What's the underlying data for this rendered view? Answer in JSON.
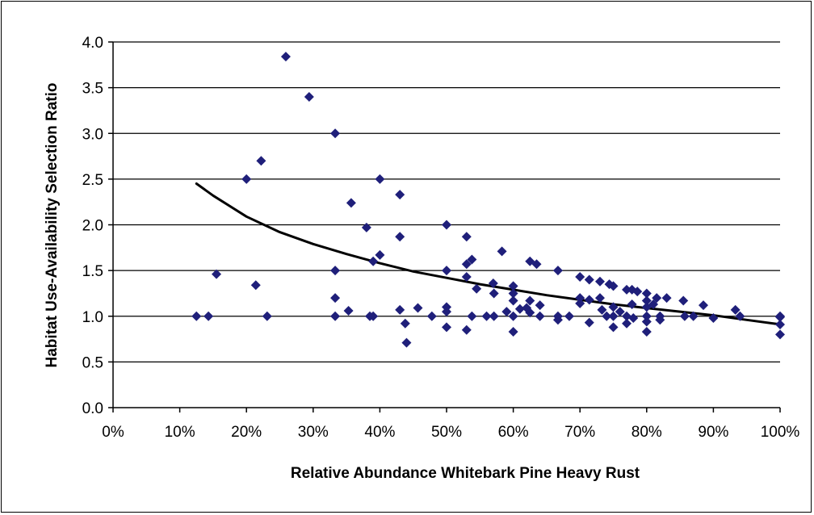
{
  "chart_data": {
    "type": "scatter",
    "xlabel": "Relative Abundance Whitebark Pine Heavy Rust",
    "ylabel": "Habitat Use-Availability Selection Ratio",
    "xlim": [
      0,
      1
    ],
    "ylim": [
      0,
      4
    ],
    "x_ticks": [
      0,
      0.1,
      0.2,
      0.3,
      0.4,
      0.5,
      0.6,
      0.7,
      0.8,
      0.9,
      1.0
    ],
    "x_tick_labels": [
      "0%",
      "10%",
      "20%",
      "30%",
      "40%",
      "50%",
      "60%",
      "70%",
      "80%",
      "90%",
      "100%"
    ],
    "y_ticks": [
      0,
      0.5,
      1.0,
      1.5,
      2.0,
      2.5,
      3.0,
      3.5,
      4.0
    ],
    "y_tick_labels": [
      "0.0",
      "0.5",
      "1.0",
      "1.5",
      "2.0",
      "2.5",
      "3.0",
      "3.5",
      "4.0"
    ],
    "grid": "horizontal",
    "legend": "none",
    "marker_color": "#1F1F7A",
    "trendline_color": "#000000",
    "points": [
      [
        0.125,
        1.0
      ],
      [
        0.143,
        1.0
      ],
      [
        0.155,
        1.46
      ],
      [
        0.2,
        2.5
      ],
      [
        0.214,
        1.34
      ],
      [
        0.222,
        2.7
      ],
      [
        0.231,
        1.0
      ],
      [
        0.259,
        3.84
      ],
      [
        0.294,
        3.4
      ],
      [
        0.333,
        3.0
      ],
      [
        0.333,
        1.5
      ],
      [
        0.333,
        1.2
      ],
      [
        0.333,
        1.0
      ],
      [
        0.353,
        1.06
      ],
      [
        0.357,
        2.24
      ],
      [
        0.38,
        1.97
      ],
      [
        0.385,
        1.0
      ],
      [
        0.39,
        1.0
      ],
      [
        0.39,
        1.6
      ],
      [
        0.4,
        2.5
      ],
      [
        0.4,
        1.67
      ],
      [
        0.43,
        2.33
      ],
      [
        0.43,
        1.87
      ],
      [
        0.43,
        1.07
      ],
      [
        0.438,
        0.92
      ],
      [
        0.44,
        0.71
      ],
      [
        0.457,
        1.09
      ],
      [
        0.478,
        1.0
      ],
      [
        0.5,
        2.0
      ],
      [
        0.5,
        1.5
      ],
      [
        0.5,
        1.1
      ],
      [
        0.5,
        1.05
      ],
      [
        0.5,
        0.88
      ],
      [
        0.53,
        1.87
      ],
      [
        0.53,
        1.57
      ],
      [
        0.53,
        1.43
      ],
      [
        0.53,
        0.85
      ],
      [
        0.538,
        1.62
      ],
      [
        0.538,
        1.0
      ],
      [
        0.545,
        1.3
      ],
      [
        0.56,
        1.0
      ],
      [
        0.57,
        1.36
      ],
      [
        0.571,
        1.25
      ],
      [
        0.571,
        1.0
      ],
      [
        0.583,
        1.71
      ],
      [
        0.59,
        1.05
      ],
      [
        0.6,
        1.33
      ],
      [
        0.6,
        1.25
      ],
      [
        0.6,
        1.17
      ],
      [
        0.6,
        1.0
      ],
      [
        0.6,
        0.83
      ],
      [
        0.61,
        1.08
      ],
      [
        0.62,
        1.09
      ],
      [
        0.625,
        1.6
      ],
      [
        0.625,
        1.17
      ],
      [
        0.625,
        1.04
      ],
      [
        0.635,
        1.57
      ],
      [
        0.64,
        1.12
      ],
      [
        0.64,
        1.0
      ],
      [
        0.667,
        1.5
      ],
      [
        0.667,
        1.0
      ],
      [
        0.667,
        0.96
      ],
      [
        0.684,
        1.0
      ],
      [
        0.7,
        1.43
      ],
      [
        0.7,
        1.2
      ],
      [
        0.7,
        1.14
      ],
      [
        0.714,
        1.4
      ],
      [
        0.714,
        1.18
      ],
      [
        0.714,
        0.93
      ],
      [
        0.73,
        1.38
      ],
      [
        0.73,
        1.2
      ],
      [
        0.733,
        1.07
      ],
      [
        0.74,
        1.0
      ],
      [
        0.744,
        1.35
      ],
      [
        0.75,
        1.33
      ],
      [
        0.75,
        1.1
      ],
      [
        0.75,
        1.0
      ],
      [
        0.75,
        0.88
      ],
      [
        0.76,
        1.05
      ],
      [
        0.77,
        1.29
      ],
      [
        0.77,
        1.0
      ],
      [
        0.77,
        0.92
      ],
      [
        0.778,
        1.29
      ],
      [
        0.778,
        1.13
      ],
      [
        0.78,
        0.98
      ],
      [
        0.786,
        1.27
      ],
      [
        0.8,
        1.25
      ],
      [
        0.8,
        1.17
      ],
      [
        0.8,
        1.1
      ],
      [
        0.8,
        1.0
      ],
      [
        0.8,
        0.94
      ],
      [
        0.8,
        0.83
      ],
      [
        0.81,
        1.13
      ],
      [
        0.815,
        1.2
      ],
      [
        0.82,
        1.0
      ],
      [
        0.82,
        0.96
      ],
      [
        0.83,
        1.2
      ],
      [
        0.855,
        1.17
      ],
      [
        0.857,
        1.0
      ],
      [
        0.87,
        1.0
      ],
      [
        0.885,
        1.12
      ],
      [
        0.9,
        0.98
      ],
      [
        0.933,
        1.07
      ],
      [
        0.94,
        1.0
      ],
      [
        1.0,
        1.0
      ],
      [
        1.0,
        0.99
      ],
      [
        1.0,
        0.91
      ],
      [
        1.0,
        0.8
      ]
    ],
    "trendline": {
      "x": [
        0.125,
        0.15,
        0.2,
        0.25,
        0.3,
        0.35,
        0.4,
        0.45,
        0.5,
        0.55,
        0.6,
        0.65,
        0.7,
        0.75,
        0.8,
        0.85,
        0.9,
        0.95,
        1.0
      ],
      "y": [
        2.45,
        2.32,
        2.09,
        1.92,
        1.79,
        1.68,
        1.58,
        1.49,
        1.42,
        1.35,
        1.29,
        1.23,
        1.18,
        1.13,
        1.09,
        1.05,
        1.01,
        0.96,
        0.91
      ]
    }
  }
}
